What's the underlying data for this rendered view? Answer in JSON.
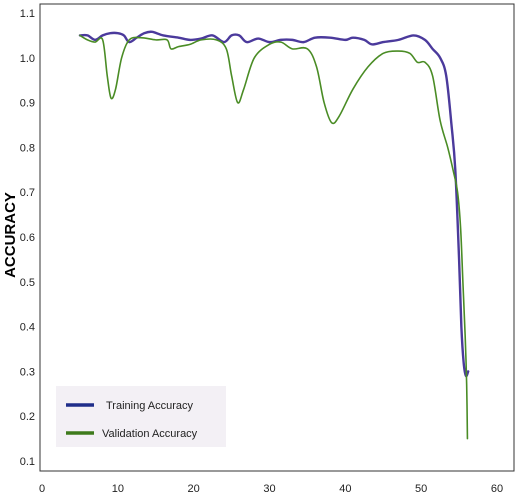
{
  "chart_data": {
    "type": "line",
    "title": "",
    "xlabel": "",
    "ylabel": "ACCURACY",
    "xlim": [
      0,
      60
    ],
    "ylim": [
      0.1,
      1.1
    ],
    "xticks": [
      0,
      10,
      20,
      30,
      40,
      50,
      60
    ],
    "yticks": [
      0.1,
      0.2,
      0.3,
      0.4,
      0.5,
      0.6,
      0.7,
      0.8,
      0.9,
      1.0,
      1.1
    ],
    "grid": false,
    "legend": "bottom-left",
    "series": [
      {
        "name": "Training Accuracy",
        "color": "#4b3a9c",
        "legend_color": "#1f2d8a",
        "points": [
          [
            5,
            1.05
          ],
          [
            6,
            1.05
          ],
          [
            7,
            1.04
          ],
          [
            8,
            1.05
          ],
          [
            9,
            1.055
          ],
          [
            10,
            1.055
          ],
          [
            10.8,
            1.05
          ],
          [
            11.5,
            1.035
          ],
          [
            12.5,
            1.045
          ],
          [
            13.5,
            1.055
          ],
          [
            14.5,
            1.058
          ],
          [
            16,
            1.05
          ],
          [
            18,
            1.045
          ],
          [
            19.5,
            1.04
          ],
          [
            21,
            1.043
          ],
          [
            22.5,
            1.05
          ],
          [
            24,
            1.035
          ],
          [
            25,
            1.05
          ],
          [
            26,
            1.05
          ],
          [
            27,
            1.035
          ],
          [
            28.5,
            1.043
          ],
          [
            30,
            1.035
          ],
          [
            31.5,
            1.04
          ],
          [
            33,
            1.04
          ],
          [
            34.5,
            1.035
          ],
          [
            36,
            1.045
          ],
          [
            38,
            1.045
          ],
          [
            40,
            1.04
          ],
          [
            41,
            1.045
          ],
          [
            42.5,
            1.04
          ],
          [
            43.5,
            1.03
          ],
          [
            45,
            1.035
          ],
          [
            47,
            1.04
          ],
          [
            49,
            1.05
          ],
          [
            50.5,
            1.04
          ],
          [
            51.5,
            1.02
          ],
          [
            52.5,
            1.0
          ],
          [
            53.3,
            0.96
          ],
          [
            54,
            0.85
          ],
          [
            54.5,
            0.75
          ],
          [
            55,
            0.55
          ],
          [
            55.3,
            0.4
          ],
          [
            55.6,
            0.32
          ],
          [
            55.9,
            0.29
          ],
          [
            56.2,
            0.3
          ]
        ]
      },
      {
        "name": "Validation Accuracy",
        "color": "#4a8c25",
        "legend_color": "#3e7a1c",
        "points": [
          [
            5,
            1.05
          ],
          [
            6,
            1.04
          ],
          [
            7,
            1.035
          ],
          [
            8,
            1.04
          ],
          [
            8.6,
            0.96
          ],
          [
            9.1,
            0.91
          ],
          [
            9.7,
            0.93
          ],
          [
            10.5,
            1.0
          ],
          [
            11.5,
            1.04
          ],
          [
            13,
            1.045
          ],
          [
            15,
            1.04
          ],
          [
            16.5,
            1.04
          ],
          [
            17,
            1.02
          ],
          [
            18,
            1.025
          ],
          [
            19.5,
            1.03
          ],
          [
            21,
            1.04
          ],
          [
            23,
            1.04
          ],
          [
            24.3,
            1.02
          ],
          [
            25,
            0.96
          ],
          [
            25.8,
            0.9
          ],
          [
            26.6,
            0.93
          ],
          [
            28,
            1.0
          ],
          [
            30,
            1.03
          ],
          [
            31.5,
            1.035
          ],
          [
            33,
            1.02
          ],
          [
            35,
            1.02
          ],
          [
            36.2,
            0.98
          ],
          [
            37.2,
            0.9
          ],
          [
            38.2,
            0.855
          ],
          [
            39.2,
            0.87
          ],
          [
            41,
            0.93
          ],
          [
            43,
            0.98
          ],
          [
            45,
            1.01
          ],
          [
            47,
            1.015
          ],
          [
            48.5,
            1.01
          ],
          [
            49.5,
            0.99
          ],
          [
            50.5,
            0.99
          ],
          [
            51.5,
            0.96
          ],
          [
            52.5,
            0.86
          ],
          [
            53.5,
            0.8
          ],
          [
            54.2,
            0.75
          ],
          [
            54.8,
            0.7
          ],
          [
            55.2,
            0.62
          ],
          [
            55.5,
            0.5
          ],
          [
            55.8,
            0.38
          ],
          [
            56,
            0.27
          ],
          [
            56.1,
            0.15
          ]
        ]
      }
    ]
  }
}
